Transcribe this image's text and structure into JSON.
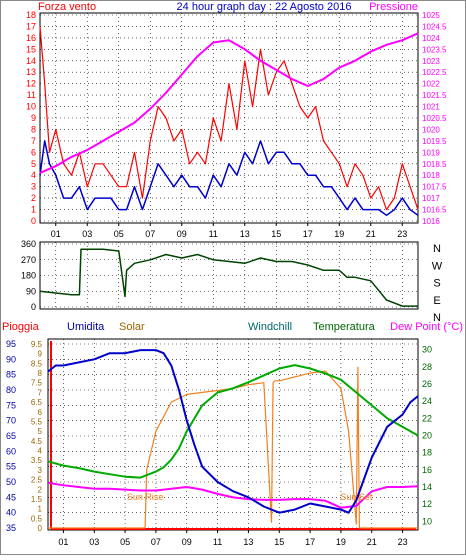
{
  "header": {
    "left_label": "Forza vento",
    "title": "24 hour graph day : 22 Agosto 2016",
    "right_label": "Pressione"
  },
  "colors": {
    "wind": "#ff0000",
    "wind_avg": "#0000cc",
    "pressure": "#ff00ff",
    "direction": "#004400",
    "humidity": "#0000cc",
    "solar": "#f08020",
    "temperature": "#00aa00",
    "dew_point": "#ff00ff",
    "rain": "#ff0000",
    "grid": "#000000",
    "humidity_axis": "#0000aa",
    "solar_axis": "#996600",
    "windchill_label": "#006666",
    "temperature_label": "#006600",
    "dew_label": "#ff00ff"
  },
  "chart_data": [
    {
      "type": "line",
      "name": "wind-pressure",
      "x_ticks": [
        "01",
        "03",
        "05",
        "07",
        "09",
        "11",
        "13",
        "15",
        "17",
        "19",
        "21",
        "23"
      ],
      "xlim": [
        0,
        24
      ],
      "y_left": {
        "ticks": [
          0,
          1,
          2,
          3,
          4,
          5,
          6,
          7,
          8,
          9,
          10,
          11,
          12,
          13,
          14,
          15,
          16,
          17,
          18
        ],
        "ylim": [
          0,
          18
        ]
      },
      "y_right": {
        "ticks": [
          "1016",
          "1016.5",
          "1017",
          "1017.5",
          "1018",
          "1018.5",
          "1019",
          "1019.5",
          "1020",
          "1020.5",
          "1021",
          "1021.5",
          "1022",
          "1022.5",
          "1023",
          "1023.5",
          "1024",
          "1024.5",
          "1025"
        ],
        "ylim": [
          1016,
          1025
        ]
      },
      "series": [
        {
          "key": "wind_gust",
          "x": [
            0,
            0.3,
            0.6,
            1,
            1.5,
            2,
            2.5,
            3,
            3.5,
            4,
            4.5,
            5,
            5.5,
            6,
            6.5,
            7,
            7.5,
            8,
            8.5,
            9,
            9.5,
            10,
            10.5,
            11,
            11.5,
            12,
            12.5,
            13,
            13.5,
            14,
            14.5,
            15,
            15.5,
            16,
            16.5,
            17,
            17.5,
            18,
            18.5,
            19,
            19.5,
            20,
            20.5,
            21,
            21.5,
            22,
            22.5,
            23,
            23.5,
            24
          ],
          "y": [
            17,
            12,
            6,
            8,
            5,
            4,
            6,
            3,
            5,
            5,
            4,
            3,
            3,
            6,
            2,
            7,
            10,
            9,
            7,
            8,
            5,
            6,
            5,
            9,
            7,
            12,
            8,
            14,
            10,
            15,
            11,
            13,
            14,
            12,
            10,
            9,
            10,
            7,
            6,
            5,
            3,
            5,
            4,
            2,
            3,
            1,
            2,
            5,
            3,
            1
          ]
        },
        {
          "key": "wind_avg",
          "x": [
            0,
            0.3,
            0.6,
            1,
            1.5,
            2,
            2.5,
            3,
            3.5,
            4,
            4.5,
            5,
            5.5,
            6,
            6.5,
            7,
            7.5,
            8,
            8.5,
            9,
            9.5,
            10,
            10.5,
            11,
            11.5,
            12,
            12.5,
            13,
            13.5,
            14,
            14.5,
            15,
            15.5,
            16,
            16.5,
            17,
            17.5,
            18,
            18.5,
            19,
            19.5,
            20,
            20.5,
            21,
            21.5,
            22,
            22.5,
            23,
            23.5,
            24
          ],
          "y": [
            4,
            7,
            5,
            4,
            2,
            2,
            3,
            1,
            2,
            2,
            2,
            1,
            1,
            3,
            1,
            3,
            5,
            4,
            3,
            4,
            3,
            3,
            2,
            4,
            3,
            5,
            4,
            6,
            5,
            7,
            5,
            6,
            6,
            5,
            5,
            4,
            4,
            3,
            3,
            2,
            1,
            2,
            1,
            1,
            1,
            0.5,
            1,
            2,
            1,
            0.5
          ]
        },
        {
          "key": "pressure",
          "x": [
            0,
            1,
            2,
            3,
            4,
            5,
            6,
            7,
            8,
            9,
            10,
            11,
            12,
            13,
            14,
            15,
            16,
            17,
            18,
            19,
            20,
            21,
            22,
            23,
            24
          ],
          "y": [
            1018.1,
            1018.4,
            1018.8,
            1019.1,
            1019.5,
            1019.9,
            1020.3,
            1020.9,
            1021.6,
            1022.4,
            1023.2,
            1023.8,
            1023.9,
            1023.5,
            1023.0,
            1022.6,
            1022.2,
            1021.9,
            1022.2,
            1022.7,
            1023.0,
            1023.4,
            1023.7,
            1023.9,
            1024.2
          ]
        }
      ]
    },
    {
      "type": "line",
      "name": "wind-direction",
      "x_ticks": [
        "01",
        "03",
        "05",
        "07",
        "09",
        "11",
        "13",
        "15",
        "17",
        "19",
        "21",
        "23"
      ],
      "xlim": [
        0,
        24
      ],
      "y_ticks": [
        0,
        90,
        180,
        270,
        360
      ],
      "ylim": [
        0,
        360
      ],
      "compass_labels": [
        "N",
        "W",
        "S",
        "E",
        "N"
      ],
      "series": [
        {
          "key": "direction",
          "x": [
            0,
            1,
            2,
            2.5,
            2.6,
            3,
            4,
            5,
            5.4,
            5.5,
            6,
            7,
            8,
            9,
            10,
            11,
            12,
            13,
            14,
            15,
            16,
            17,
            18,
            19,
            19.5,
            20,
            21,
            22,
            23,
            24
          ],
          "y": [
            90,
            80,
            70,
            70,
            330,
            330,
            330,
            320,
            60,
            210,
            250,
            270,
            300,
            280,
            300,
            270,
            260,
            250,
            280,
            260,
            260,
            240,
            210,
            210,
            170,
            170,
            150,
            40,
            5,
            5
          ]
        }
      ]
    },
    {
      "type": "line",
      "name": "humidity-temperature",
      "x_ticks": [
        "01",
        "03",
        "05",
        "07",
        "09",
        "11",
        "13",
        "15",
        "17",
        "19",
        "21",
        "23"
      ],
      "xlim": [
        0,
        24
      ],
      "axis_labels": {
        "rain": "Pioggia",
        "humidity": "Umidita",
        "solar": "Solar",
        "windchill": "Windchill",
        "temperature": "Temperatura",
        "dew": "Dew Point (°C)"
      },
      "y_rain": {
        "ticks": [
          "0",
          "0.5",
          "1",
          "1.5",
          "2",
          "2.5",
          "3",
          "3.5",
          "4",
          "4.5",
          "5",
          "5.5",
          "6",
          "6.5",
          "7",
          "7.5",
          "8",
          "8.5",
          "9",
          "9.5"
        ],
        "ylim": [
          0,
          9.5
        ]
      },
      "y_humidity": {
        "ticks": [
          35,
          40,
          45,
          50,
          55,
          60,
          65,
          70,
          75,
          80,
          85,
          90,
          95
        ],
        "ylim": [
          35,
          95
        ]
      },
      "y_temperature": {
        "ticks": [
          10,
          12,
          14,
          16,
          18,
          20,
          22,
          24,
          26,
          28,
          30
        ],
        "ylim": [
          9,
          31
        ]
      },
      "annotations": [
        {
          "text": "Sun Rise",
          "x": 6.3
        },
        {
          "text": "Sun Set",
          "x": 20.0
        }
      ],
      "series": [
        {
          "key": "humidity",
          "x": [
            0,
            0.5,
            1,
            2,
            3,
            4,
            5,
            6,
            7,
            7.5,
            8,
            8.5,
            9,
            9.5,
            10,
            11,
            12,
            13,
            14,
            15,
            16,
            17,
            18,
            19,
            19.5,
            20,
            21,
            22,
            23,
            23.5,
            24
          ],
          "y": [
            86,
            88,
            88,
            89,
            90,
            92,
            92,
            93,
            93,
            92,
            88,
            80,
            70,
            62,
            55,
            50,
            47,
            45,
            42,
            40,
            41,
            43,
            42,
            41,
            40,
            44,
            58,
            68,
            72,
            76,
            78
          ]
        },
        {
          "key": "solar",
          "x": [
            0,
            6.3,
            6.4,
            7,
            8,
            9,
            10,
            11,
            12,
            13,
            14,
            14.5,
            14.6,
            14.7,
            15,
            16,
            17,
            18,
            19,
            19.5,
            20,
            20.1,
            20.2,
            24
          ],
          "y": [
            0,
            0,
            3,
            5,
            6.5,
            6.9,
            7,
            7.1,
            7.2,
            7.4,
            7.5,
            0.3,
            7.5,
            7.6,
            7.6,
            7.8,
            8,
            8.1,
            7.2,
            5,
            0.2,
            8.3,
            0,
            0
          ]
        },
        {
          "key": "temperature",
          "x": [
            0,
            1,
            2,
            3,
            4,
            5,
            6,
            7,
            7.5,
            8,
            8.5,
            9,
            10,
            11,
            12,
            13,
            14,
            15,
            16,
            17,
            18,
            19,
            20,
            21,
            22,
            23,
            24
          ],
          "y": [
            17,
            16.5,
            16.2,
            15.8,
            15.5,
            15.2,
            15.1,
            15.8,
            16.3,
            17.2,
            18.5,
            20.5,
            23.5,
            25,
            25.5,
            26.2,
            27,
            27.8,
            28.2,
            27.8,
            27.2,
            26.5,
            25,
            23.5,
            22,
            21,
            20
          ]
        },
        {
          "key": "dew_point",
          "x": [
            0,
            1,
            2,
            3,
            4,
            5,
            6,
            7,
            8,
            9,
            10,
            11,
            12,
            13,
            14,
            15,
            16,
            17,
            18,
            19,
            20,
            21,
            22,
            23,
            24
          ],
          "y": [
            14.5,
            14.2,
            14,
            13.8,
            13.8,
            13.7,
            13.6,
            13.6,
            13.8,
            14,
            13.7,
            13.2,
            12.8,
            12.6,
            12.5,
            12.5,
            12.6,
            12.6,
            12.4,
            11.6,
            11.8,
            13.5,
            14,
            14,
            14.1
          ]
        }
      ]
    }
  ]
}
